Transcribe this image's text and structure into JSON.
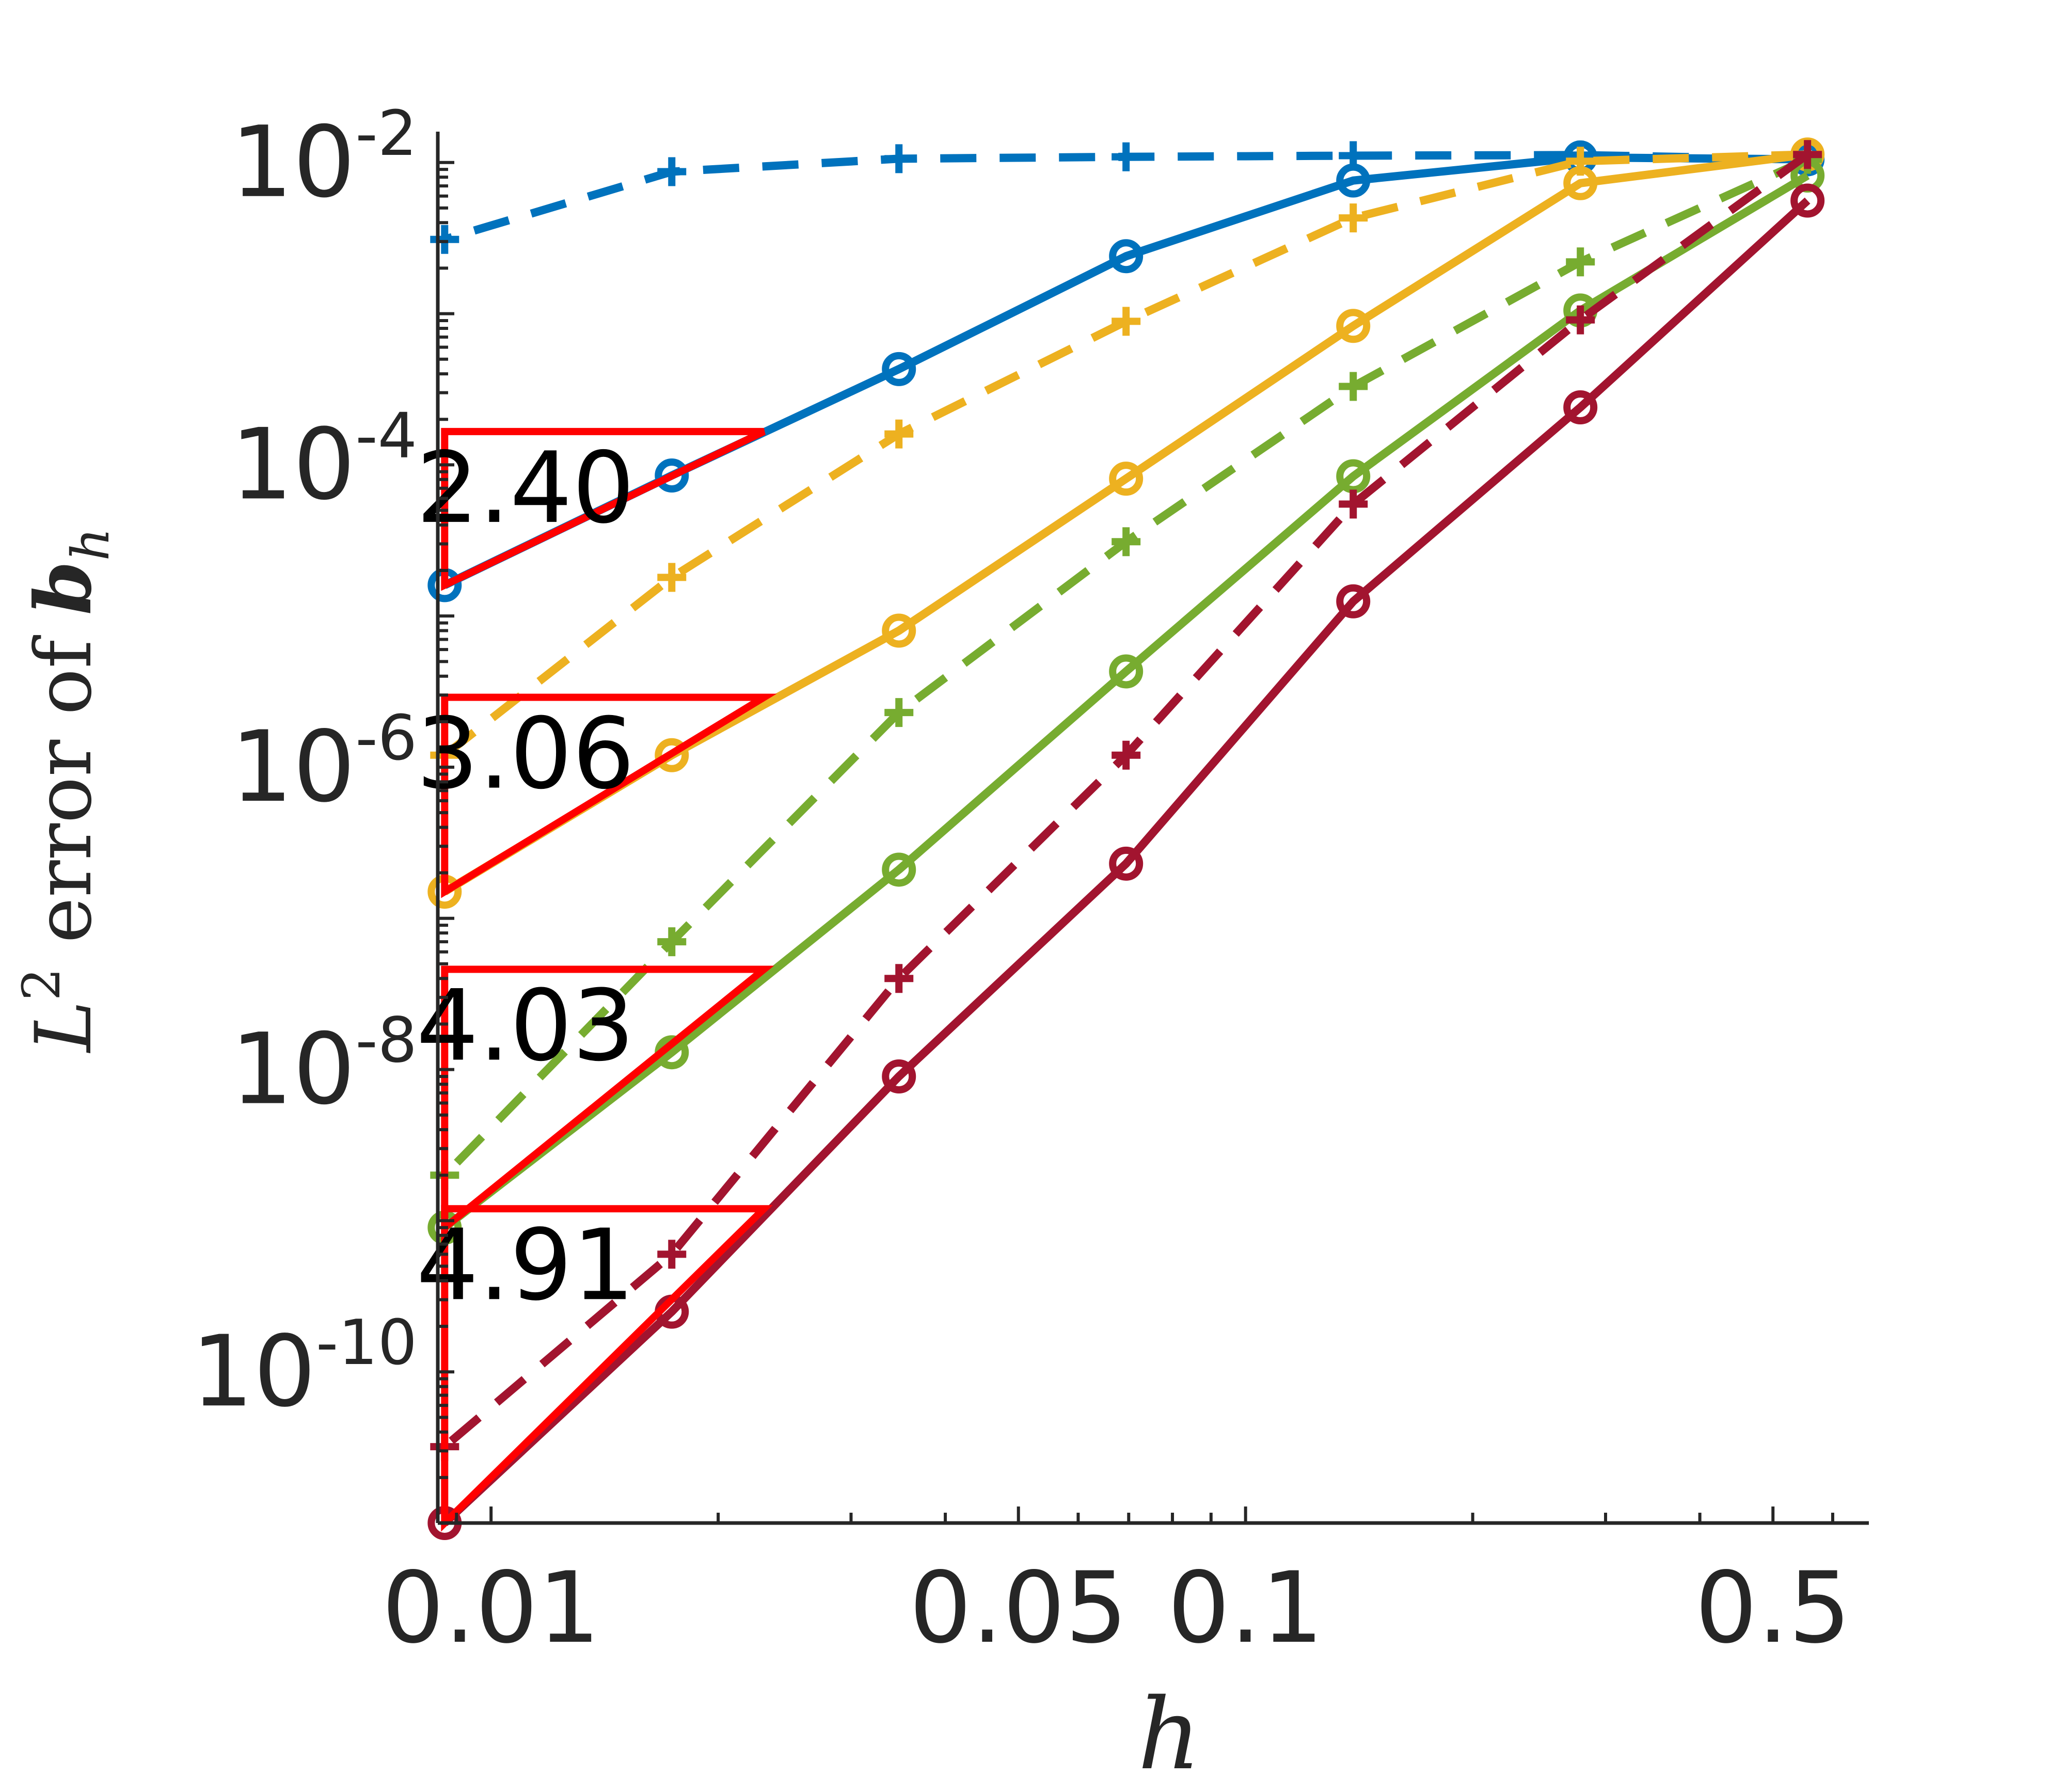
{
  "chart_data": {
    "type": "line",
    "xlabel": "h",
    "ylabel": {
      "base": "L",
      "sup": "2",
      "mid": " error of ",
      "var": "b",
      "sub": "h"
    },
    "xscale": "log",
    "yscale": "log",
    "xlim": [
      0.0085,
      0.67
    ],
    "ylim": [
      1e-11,
      0.016
    ],
    "xticks": [
      {
        "value": 0.01,
        "label": "0.01"
      },
      {
        "value": 0.05,
        "label": "0.05"
      },
      {
        "value": 0.1,
        "label": "0.1"
      },
      {
        "value": 0.5,
        "label": "0.5"
      }
    ],
    "yticks": [
      {
        "value": 0.01,
        "base": "10",
        "exp": "-2"
      },
      {
        "value": 0.0001,
        "base": "10",
        "exp": "-4"
      },
      {
        "value": 1e-06,
        "base": "10",
        "exp": "-6"
      },
      {
        "value": 1e-08,
        "base": "10",
        "exp": "-8"
      },
      {
        "value": 1e-10,
        "base": "10",
        "exp": "-10"
      }
    ],
    "grid": false,
    "x": [
      0.5556,
      0.2778,
      0.1389,
      0.06944,
      0.03472,
      0.01736,
      0.00868
    ],
    "series": [
      {
        "color": "#0072BD",
        "dash": false,
        "marker": "circle",
        "values": [
          0.0105,
          0.0108,
          0.0076,
          0.0024,
          0.00043,
          8.5e-05,
          1.6e-05
        ]
      },
      {
        "color": "#0072BD",
        "dash": true,
        "marker": "plus",
        "values": [
          0.0105,
          0.0112,
          0.0111,
          0.0109,
          0.0106,
          0.0087,
          0.0031
        ]
      },
      {
        "color": "#EDB120",
        "dash": false,
        "marker": "circle",
        "values": [
          0.0113,
          0.0073,
          0.00083,
          8.1e-05,
          8e-06,
          1.2e-06,
          1.5e-07
        ]
      },
      {
        "color": "#EDB120",
        "dash": true,
        "marker": "plus",
        "values": [
          0.0113,
          0.0102,
          0.0043,
          0.00089,
          0.00016,
          1.8e-05,
          1.2e-06
        ]
      },
      {
        "color": "#77AC30",
        "dash": false,
        "marker": "circle",
        "values": [
          0.0082,
          0.00105,
          8.4e-05,
          4.3e-06,
          2.1e-07,
          1.3e-08,
          9e-10
        ]
      },
      {
        "color": "#77AC30",
        "dash": true,
        "marker": "plus",
        "values": [
          0.0105,
          0.0022,
          0.00033,
          3.1e-05,
          2.3e-06,
          7e-08,
          2e-09
        ]
      },
      {
        "color": "#A2142F",
        "dash": false,
        "marker": "circle",
        "values": [
          0.0056,
          0.00024,
          1.25e-05,
          2.3e-07,
          9e-09,
          2.5e-10,
          1e-11
        ]
      },
      {
        "color": "#A2142F",
        "dash": true,
        "marker": "plus",
        "values": [
          0.0113,
          0.00091,
          5.5e-05,
          1.2e-06,
          4e-08,
          6e-10,
          3.2e-11
        ]
      }
    ],
    "slope_triangles": [
      {
        "label": "2.40",
        "x0": 0.00868,
        "x1": 0.023,
        "y_low": 1.6e-05,
        "y_high": 0.000166
      },
      {
        "label": "3.06",
        "x0": 0.00868,
        "x1": 0.023,
        "y_low": 1.5e-07,
        "y_high": 2.9e-06
      },
      {
        "label": "4.03",
        "x0": 0.00868,
        "x1": 0.023,
        "y_low": 9e-10,
        "y_high": 4.6e-08
      },
      {
        "label": "4.91",
        "x0": 0.00868,
        "x1": 0.023,
        "y_low": 1e-11,
        "y_high": 1.2e-09
      }
    ],
    "triangle_color": "#FF0000"
  }
}
